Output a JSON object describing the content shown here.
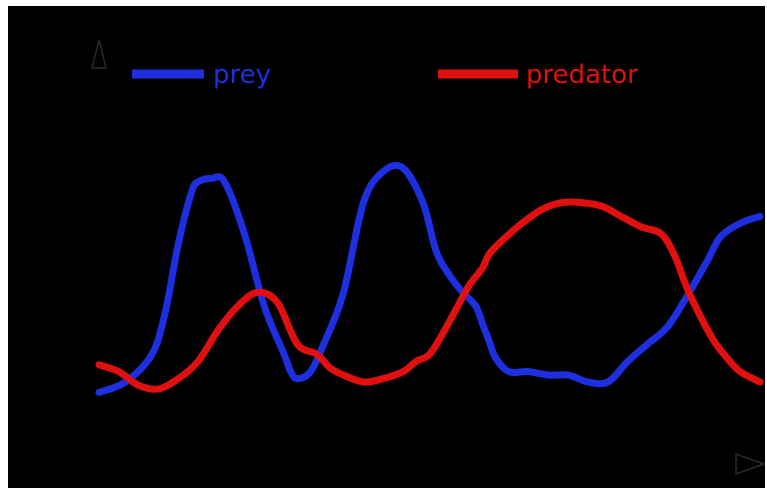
{
  "chart_data": {
    "type": "line",
    "title": "",
    "xlabel": "",
    "ylabel": "",
    "xlim": [
      0,
      100
    ],
    "ylim": [
      0,
      100
    ],
    "legend_position": "top",
    "background": "#000000",
    "series": [
      {
        "name": "prey",
        "color": "#1e2fe0",
        "x": [
          0,
          4,
          8,
          10,
          12,
          14,
          15,
          17,
          19,
          22,
          25,
          28,
          29,
          30,
          32,
          34,
          37,
          40,
          43,
          46,
          49,
          51,
          53,
          55,
          57,
          58,
          59,
          60,
          62,
          65,
          68,
          71,
          74,
          77,
          80,
          83,
          86,
          89,
          92,
          94,
          97,
          100
        ],
        "y": [
          17,
          20,
          28,
          40,
          60,
          75,
          78,
          79,
          78,
          63,
          42,
          28,
          23,
          21,
          23,
          31,
          46,
          72,
          81,
          82,
          72,
          58,
          51,
          46,
          42,
          37,
          32,
          27,
          23,
          23,
          22,
          22,
          20,
          20,
          26,
          31,
          36,
          45,
          55,
          62,
          66,
          68
        ]
      },
      {
        "name": "predator",
        "color": "#e01010",
        "x": [
          0,
          3,
          6,
          9,
          12,
          15,
          18,
          21,
          24,
          27,
          30,
          33,
          35,
          37,
          40,
          43,
          46,
          48,
          50,
          52,
          54,
          56,
          58,
          59,
          61,
          64,
          67,
          70,
          73,
          76,
          79,
          82,
          85,
          87,
          89,
          91,
          93,
          95,
          97,
          100
        ],
        "y": [
          25,
          23,
          19,
          18,
          21,
          26,
          35,
          42,
          46,
          43,
          31,
          28,
          24,
          22,
          20,
          21,
          23,
          26,
          28,
          34,
          41,
          48,
          53,
          57,
          61,
          66,
          70,
          72,
          72,
          71,
          68,
          65,
          63,
          57,
          47,
          39,
          32,
          27,
          23,
          20
        ]
      }
    ]
  }
}
